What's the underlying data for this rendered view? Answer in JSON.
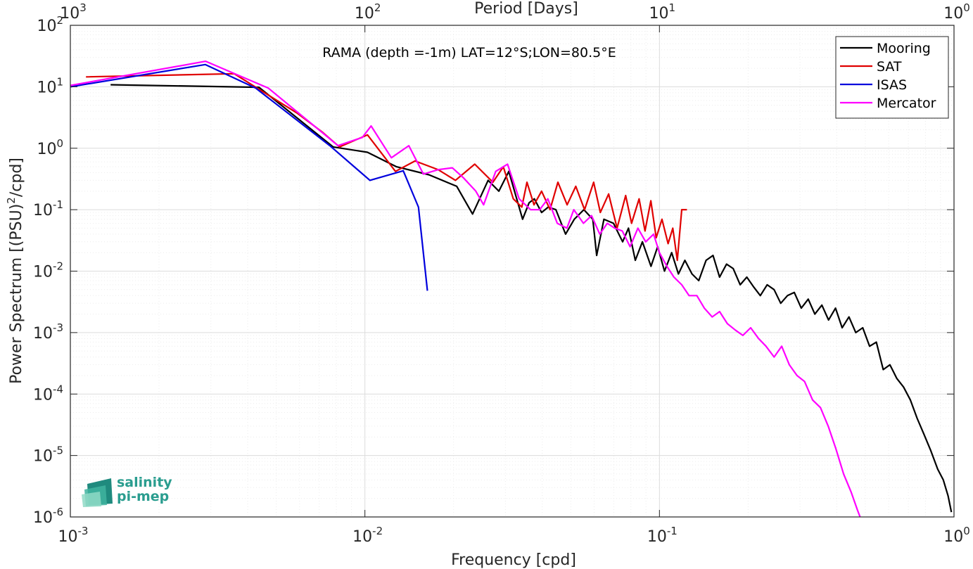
{
  "chart_data": {
    "type": "line",
    "title": "RAMA (depth =-1m) LAT=12°S;LON=80.5°E",
    "xlabel": "Frequency [cpd]",
    "ylabel": "Power Spectrum [(PSU)",
    "ylabel_sup": "2",
    "ylabel_tail": "/cpd]",
    "top_xlabel": "Period [Days]",
    "x_scale": "log",
    "y_scale": "log",
    "xlim": [
      0.001,
      1
    ],
    "ylim": [
      1e-06,
      100
    ],
    "grid": true,
    "minor_grid": true,
    "legend_position": "top-right",
    "x_ticks": [
      {
        "base": "10",
        "exp": "-3",
        "value": 0.001
      },
      {
        "base": "10",
        "exp": "-2",
        "value": 0.01
      },
      {
        "base": "10",
        "exp": "-1",
        "value": 0.1
      },
      {
        "base": "10",
        "exp": "0",
        "value": 1
      }
    ],
    "top_ticks": [
      {
        "base": "10",
        "exp": "3",
        "value": 0.001
      },
      {
        "base": "10",
        "exp": "2",
        "value": 0.01
      },
      {
        "base": "10",
        "exp": "1",
        "value": 0.1
      },
      {
        "base": "10",
        "exp": "0",
        "value": 1
      }
    ],
    "y_ticks": [
      {
        "base": "10",
        "exp": "-6",
        "value": 1e-06
      },
      {
        "base": "10",
        "exp": "-5",
        "value": 1e-05
      },
      {
        "base": "10",
        "exp": "-4",
        "value": 0.0001
      },
      {
        "base": "10",
        "exp": "-3",
        "value": 0.001
      },
      {
        "base": "10",
        "exp": "-2",
        "value": 0.01
      },
      {
        "base": "10",
        "exp": "-1",
        "value": 0.1
      },
      {
        "base": "10",
        "exp": "0",
        "value": 1
      },
      {
        "base": "10",
        "exp": "1",
        "value": 10
      },
      {
        "base": "10",
        "exp": "2",
        "value": 100
      }
    ],
    "series": [
      {
        "name": "Mooring",
        "color": "#000000",
        "x": [
          0.00137,
          0.00437,
          0.0078,
          0.0102,
          0.0128,
          0.0165,
          0.0205,
          0.0232,
          0.0262,
          0.0285,
          0.0308,
          0.0343,
          0.0361,
          0.0376,
          0.0398,
          0.0419,
          0.0445,
          0.048,
          0.0514,
          0.0554,
          0.0594,
          0.0612,
          0.0648,
          0.0698,
          0.075,
          0.0785,
          0.0828,
          0.0875,
          0.0936,
          0.0986,
          0.104,
          0.11,
          0.116,
          0.122,
          0.129,
          0.136,
          0.144,
          0.152,
          0.16,
          0.169,
          0.178,
          0.188,
          0.198,
          0.209,
          0.22,
          0.232,
          0.245,
          0.258,
          0.272,
          0.287,
          0.303,
          0.32,
          0.337,
          0.356,
          0.375,
          0.396,
          0.417,
          0.44,
          0.464,
          0.49,
          0.517,
          0.545,
          0.575,
          0.606,
          0.639,
          0.674,
          0.711,
          0.75,
          0.791,
          0.834,
          0.88,
          0.92,
          0.955,
          0.98
        ],
        "y": [
          10.8,
          9.8,
          1.05,
          0.86,
          0.5,
          0.37,
          0.24,
          0.085,
          0.3,
          0.2,
          0.42,
          0.07,
          0.13,
          0.15,
          0.09,
          0.11,
          0.1,
          0.04,
          0.07,
          0.1,
          0.07,
          0.018,
          0.07,
          0.06,
          0.03,
          0.05,
          0.015,
          0.03,
          0.012,
          0.025,
          0.01,
          0.02,
          0.009,
          0.015,
          0.009,
          0.007,
          0.015,
          0.018,
          0.008,
          0.013,
          0.011,
          0.006,
          0.008,
          0.0055,
          0.004,
          0.006,
          0.005,
          0.003,
          0.004,
          0.0045,
          0.0025,
          0.0035,
          0.002,
          0.0028,
          0.0016,
          0.0025,
          0.0012,
          0.0018,
          0.001,
          0.0012,
          0.0006,
          0.0007,
          0.00025,
          0.0003,
          0.00018,
          0.00013,
          8e-05,
          4e-05,
          2.2e-05,
          1.2e-05,
          6e-06,
          4e-06,
          2.2e-06,
          1.2e-06
        ]
      },
      {
        "name": "SAT",
        "color": "#e00000",
        "x": [
          0.00113,
          0.0036,
          0.0059,
          0.0072,
          0.0082,
          0.0102,
          0.0127,
          0.0148,
          0.0177,
          0.0203,
          0.0236,
          0.0272,
          0.0295,
          0.0319,
          0.0341,
          0.0355,
          0.0375,
          0.0398,
          0.0425,
          0.0452,
          0.0486,
          0.052,
          0.0557,
          0.0598,
          0.063,
          0.0672,
          0.0718,
          0.0768,
          0.0804,
          0.0853,
          0.0893,
          0.0935,
          0.0975,
          0.102,
          0.107,
          0.111,
          0.115,
          0.119,
          0.124
        ],
        "y": [
          14.5,
          16.3,
          3.7,
          1.8,
          1.05,
          1.65,
          0.42,
          0.62,
          0.45,
          0.3,
          0.55,
          0.28,
          0.5,
          0.15,
          0.11,
          0.28,
          0.12,
          0.2,
          0.1,
          0.28,
          0.12,
          0.24,
          0.1,
          0.28,
          0.09,
          0.18,
          0.05,
          0.17,
          0.06,
          0.15,
          0.045,
          0.14,
          0.035,
          0.07,
          0.028,
          0.05,
          0.015,
          0.1,
          0.1
        ]
      },
      {
        "name": "ISAS",
        "color": "#0000dd",
        "x": [
          0.001,
          0.00287,
          0.00426,
          0.0076,
          0.0104,
          0.0135,
          0.0152,
          0.0163
        ],
        "y": [
          10,
          23,
          9.5,
          1.1,
          0.3,
          0.43,
          0.11,
          0.0048
        ]
      },
      {
        "name": "Mercator",
        "color": "#ff00ff",
        "x": [
          0.001,
          0.00288,
          0.0047,
          0.0075,
          0.0081,
          0.0098,
          0.0105,
          0.0123,
          0.0141,
          0.0158,
          0.0178,
          0.0198,
          0.0216,
          0.0238,
          0.0253,
          0.0278,
          0.0305,
          0.0334,
          0.0365,
          0.0392,
          0.0418,
          0.045,
          0.0485,
          0.0512,
          0.0552,
          0.0588,
          0.0627,
          0.0665,
          0.0705,
          0.0748,
          0.0795,
          0.0845,
          0.0898,
          0.0955,
          0.1,
          0.106,
          0.112,
          0.119,
          0.126,
          0.134,
          0.142,
          0.151,
          0.16,
          0.17,
          0.181,
          0.192,
          0.204,
          0.217,
          0.23,
          0.245,
          0.26,
          0.276,
          0.293,
          0.311,
          0.331,
          0.352,
          0.374,
          0.397,
          0.422,
          0.448,
          0.47,
          0.48
        ],
        "y": [
          10.5,
          26,
          9.5,
          1.5,
          1.1,
          1.5,
          2.3,
          0.7,
          1.1,
          0.38,
          0.45,
          0.48,
          0.33,
          0.2,
          0.12,
          0.42,
          0.55,
          0.15,
          0.1,
          0.1,
          0.15,
          0.06,
          0.05,
          0.1,
          0.06,
          0.08,
          0.04,
          0.06,
          0.05,
          0.045,
          0.025,
          0.05,
          0.03,
          0.04,
          0.02,
          0.012,
          0.008,
          0.006,
          0.004,
          0.004,
          0.0025,
          0.0018,
          0.0022,
          0.0014,
          0.0011,
          0.0009,
          0.0012,
          0.0008,
          0.0006,
          0.0004,
          0.0006,
          0.0003,
          0.0002,
          0.00016,
          8e-05,
          6e-05,
          3e-05,
          1.3e-05,
          5e-06,
          2.5e-06,
          1.3e-06,
          1e-06
        ]
      }
    ]
  },
  "logo": {
    "line1": "salinity",
    "line2": "pi-mep"
  }
}
